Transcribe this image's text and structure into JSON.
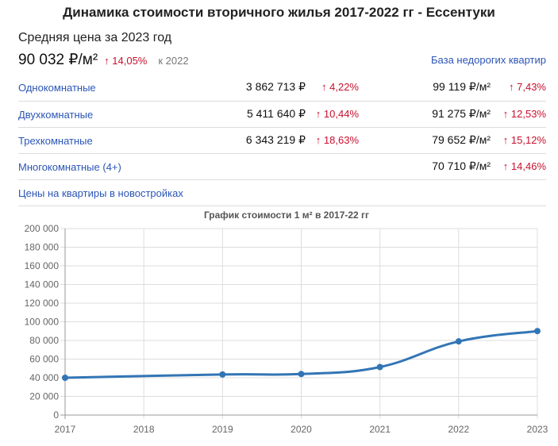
{
  "header": {
    "title": "Динамика стоимости вторичного жилья 2017-2022 гг - Ессентуки",
    "subtitle": "Средняя цена за 2023 год",
    "avg_price": "90 032 ₽/м²",
    "avg_change": "↑ 14,05%",
    "avg_ref": "к 2022",
    "base_link": "База недорогих квартир"
  },
  "colors": {
    "link": "#2b55b5",
    "up": "#c8102e",
    "line": "#3275b5",
    "grid": "#dddddd"
  },
  "rows": [
    {
      "name": "Однокомнатные",
      "total": "3 862 713 ₽",
      "total_change": "↑ 4,22%",
      "sqm": "99 119 ₽/м²",
      "sqm_change": "↑ 7,43%"
    },
    {
      "name": "Двухкомнатные",
      "total": "5 411 640 ₽",
      "total_change": "↑ 10,44%",
      "sqm": "91 275 ₽/м²",
      "sqm_change": "↑ 12,53%"
    },
    {
      "name": "Трехкомнатные",
      "total": "6 343 219 ₽",
      "total_change": "↑ 18,63%",
      "sqm": "79 652 ₽/м²",
      "sqm_change": "↑ 15,12%"
    },
    {
      "name": "Многокомнатные (4+)",
      "total": "",
      "total_change": "",
      "sqm": "70 710 ₽/м²",
      "sqm_change": "↑ 14,46%"
    },
    {
      "name": "Цены на квартиры в новостройках",
      "total": "",
      "total_change": "",
      "sqm": "",
      "sqm_change": ""
    }
  ],
  "chart_data": {
    "type": "line",
    "title": "График стоимости 1 м² в 2017-22 гг",
    "xlabel": "",
    "ylabel": "",
    "x": [
      "2017",
      "2018",
      "2019",
      "2020",
      "2021",
      "2022",
      "2023"
    ],
    "series": [
      {
        "name": "Стоимость 1 м²",
        "points": [
          {
            "x": "2017",
            "y": 40000
          },
          {
            "x": "2019",
            "y": 43500
          },
          {
            "x": "2020",
            "y": 44000
          },
          {
            "x": "2021",
            "y": 51500
          },
          {
            "x": "2022",
            "y": 79000
          },
          {
            "x": "2023",
            "y": 90032
          }
        ]
      }
    ],
    "yticks": [
      "0",
      "20 000",
      "40 000",
      "60 000",
      "80 000",
      "100 000",
      "120 000",
      "140 000",
      "160 000",
      "180 000",
      "200 000"
    ],
    "ylim": [
      0,
      200000
    ],
    "grid": true,
    "legend": "none"
  }
}
